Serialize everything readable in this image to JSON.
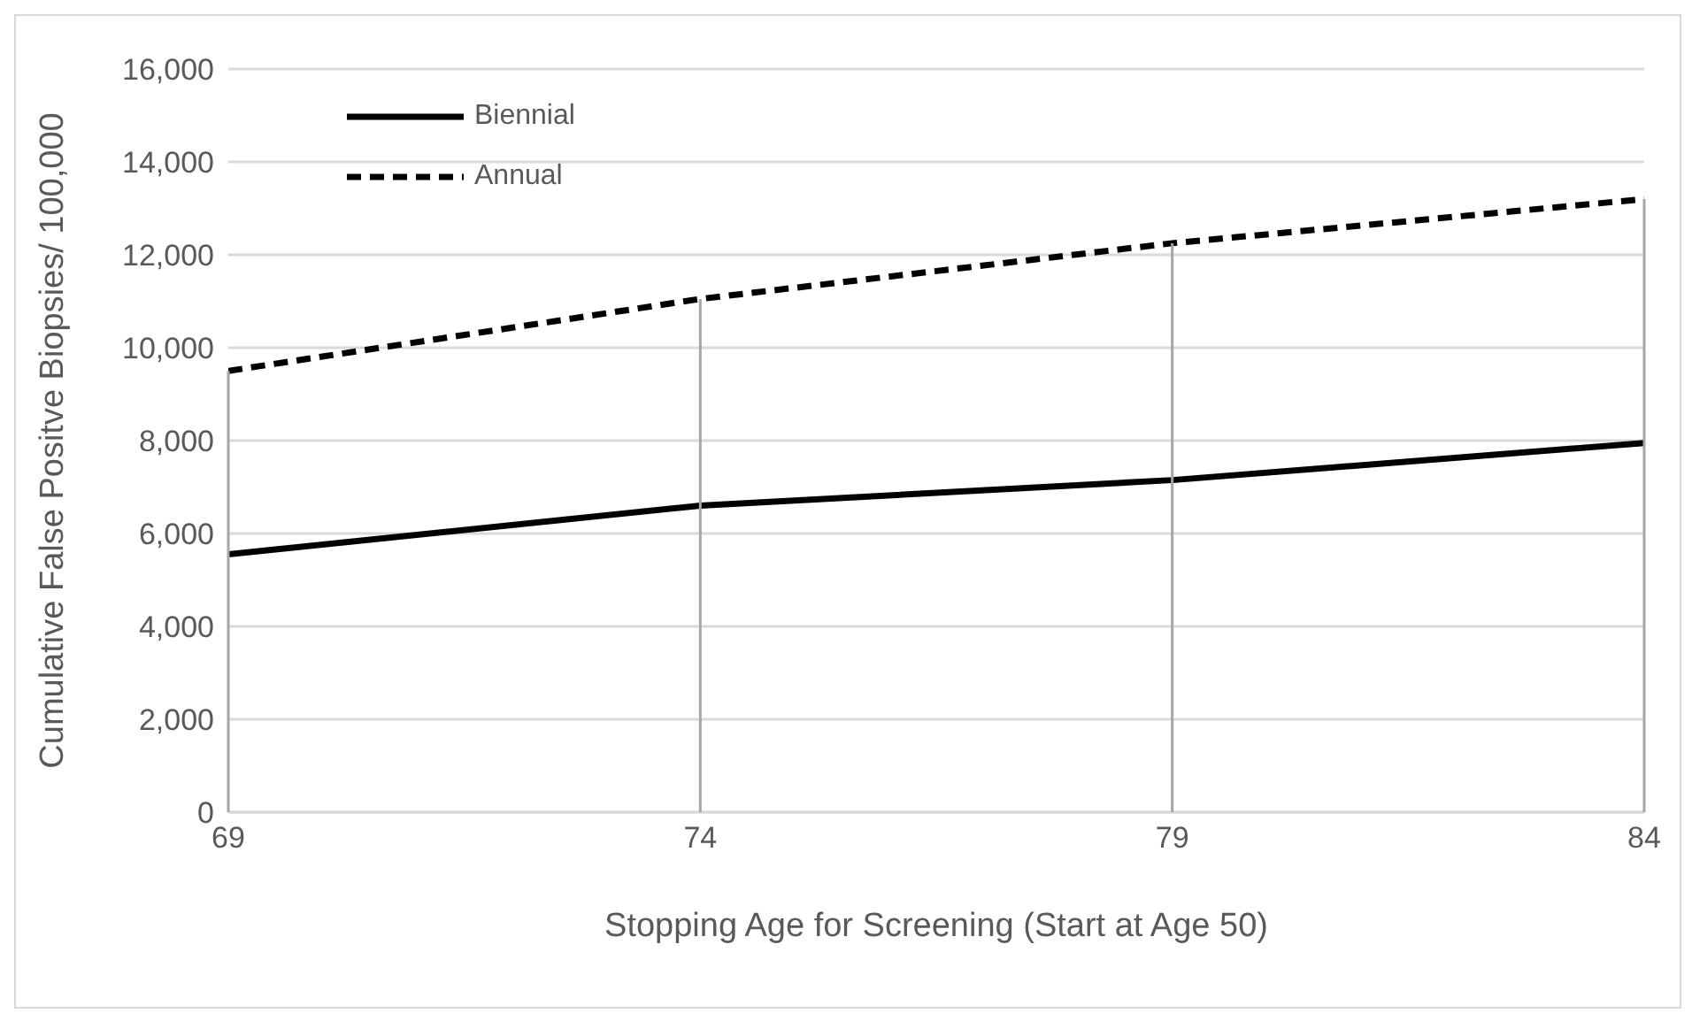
{
  "chart_data": {
    "type": "line",
    "xlabel": "Stopping Age for Screening (Start at Age 50)",
    "ylabel": "Cumulative False Positve Biopsies/ 100,000",
    "x": [
      69,
      74,
      79,
      84
    ],
    "xlim": [
      69,
      84
    ],
    "xticks": [
      69,
      74,
      79,
      84
    ],
    "ylim": [
      0,
      16000
    ],
    "yticks": [
      {
        "value": 0,
        "label": "0"
      },
      {
        "value": 2000,
        "label": "2,000"
      },
      {
        "value": 4000,
        "label": "4,000"
      },
      {
        "value": 6000,
        "label": "6,000"
      },
      {
        "value": 8000,
        "label": "8,000"
      },
      {
        "value": 10000,
        "label": "10,000"
      },
      {
        "value": 12000,
        "label": "12,000"
      },
      {
        "value": 14000,
        "label": "14,000"
      },
      {
        "value": 16000,
        "label": "16,000"
      }
    ],
    "grid": "y",
    "ref_lines": [
      {
        "axis": "x",
        "value": 69,
        "color": "#a6a6a6"
      },
      {
        "axis": "x",
        "value": 74,
        "color": "#a6a6a6"
      },
      {
        "axis": "x",
        "value": 79,
        "color": "#a6a6a6"
      },
      {
        "axis": "x",
        "value": 84,
        "color": "#a6a6a6"
      }
    ],
    "legend": "top left",
    "marker": "none",
    "series": [
      {
        "name": "Biennial",
        "color": "#000000",
        "line_style": "solid",
        "values": [
          5550,
          6600,
          7150,
          7950
        ]
      },
      {
        "name": "Annual",
        "color": "#000000",
        "line_style": "dashed",
        "values": [
          9500,
          11050,
          12250,
          13200
        ]
      }
    ]
  }
}
